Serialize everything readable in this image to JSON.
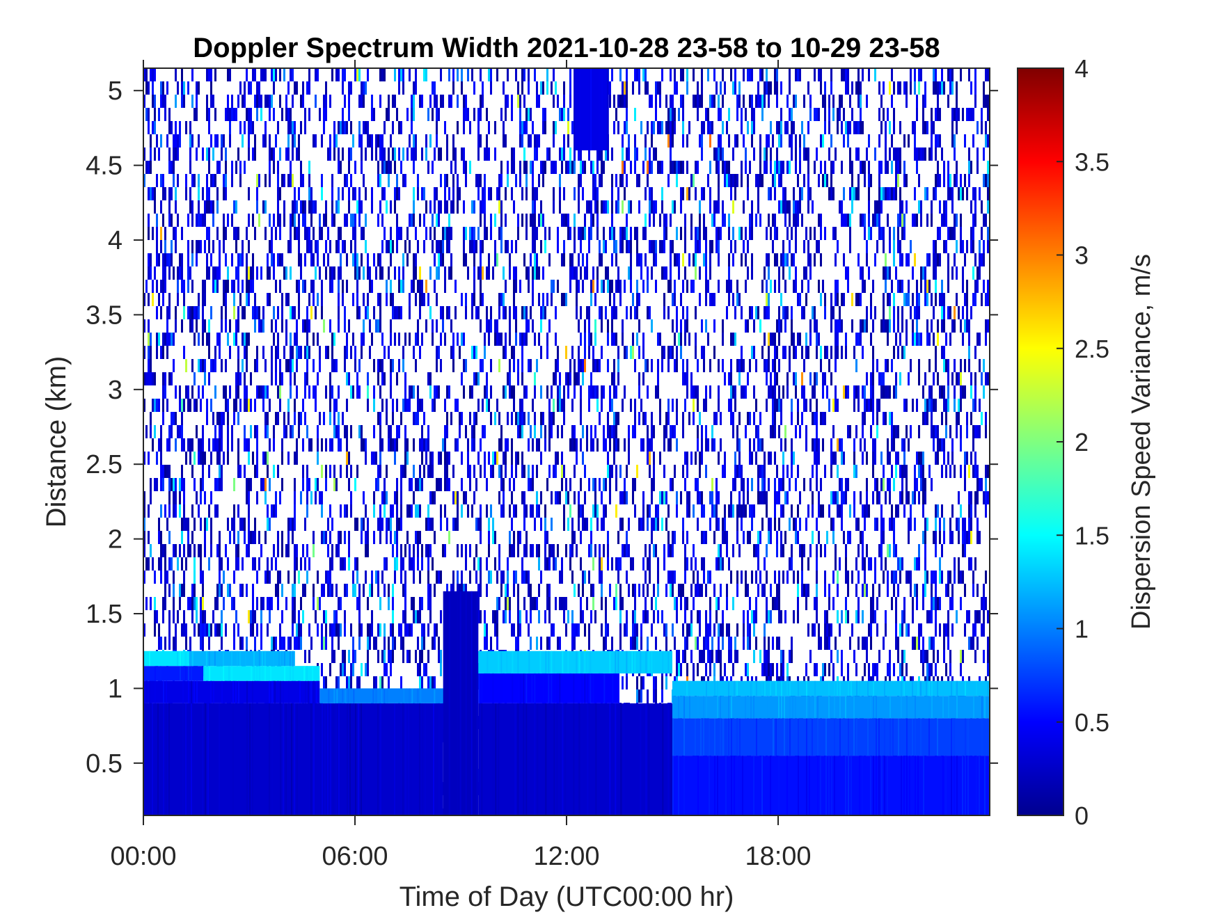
{
  "chart_data": {
    "type": "heatmap",
    "title": "Doppler Spectrum Width 2021-10-28 23-58 to 10-29 23-58",
    "xlabel": "Time of Day (UTC00:00 hr)",
    "ylabel": "Distance (km)",
    "colorbar_label": "Dispersion Speed Variance, m/s",
    "colormap": "jet",
    "xlim_hours": [
      0,
      24
    ],
    "ylim_km": [
      0.15,
      5.15
    ],
    "clim": [
      0,
      4
    ],
    "x_ticks": [
      {
        "value": 0,
        "label": "00:00"
      },
      {
        "value": 6,
        "label": "06:00"
      },
      {
        "value": 12,
        "label": "12:00"
      },
      {
        "value": 18,
        "label": "18:00"
      }
    ],
    "y_ticks": [
      {
        "value": 0.5,
        "label": "0.5"
      },
      {
        "value": 1,
        "label": "1"
      },
      {
        "value": 1.5,
        "label": "1.5"
      },
      {
        "value": 2,
        "label": "2"
      },
      {
        "value": 2.5,
        "label": "2.5"
      },
      {
        "value": 3,
        "label": "3"
      },
      {
        "value": 3.5,
        "label": "3.5"
      },
      {
        "value": 4,
        "label": "4"
      },
      {
        "value": 4.5,
        "label": "4.5"
      },
      {
        "value": 5,
        "label": "5"
      }
    ],
    "colorbar_ticks": [
      {
        "value": 0,
        "label": "0"
      },
      {
        "value": 0.5,
        "label": "0.5"
      },
      {
        "value": 1,
        "label": "1"
      },
      {
        "value": 1.5,
        "label": "1.5"
      },
      {
        "value": 2,
        "label": "2"
      },
      {
        "value": 2.5,
        "label": "2.5"
      },
      {
        "value": 3,
        "label": "3"
      },
      {
        "value": 3.5,
        "label": "3.5"
      },
      {
        "value": 4,
        "label": "4"
      }
    ],
    "regions": [
      {
        "t0": 0,
        "t1": 8.5,
        "z0": 0.15,
        "z1": 0.9,
        "value": 0.3
      },
      {
        "t0": 0,
        "t1": 5.0,
        "z0": 0.9,
        "z1": 1.05,
        "value": 0.4
      },
      {
        "t0": 5.0,
        "t1": 8.5,
        "z0": 0.9,
        "z1": 1.0,
        "value": 1.0
      },
      {
        "t0": 0,
        "t1": 1.7,
        "z0": 1.05,
        "z1": 1.15,
        "value": 0.6
      },
      {
        "t0": 1.7,
        "t1": 5.0,
        "z0": 1.05,
        "z1": 1.15,
        "value": 1.4
      },
      {
        "t0": 0,
        "t1": 1.3,
        "z0": 1.15,
        "z1": 1.25,
        "value": 1.4
      },
      {
        "t0": 1.3,
        "t1": 4.3,
        "z0": 1.15,
        "z1": 1.25,
        "value": 1.2
      },
      {
        "t0": 8.5,
        "t1": 9.5,
        "z0": 0.15,
        "z1": 1.65,
        "value": 0.25
      },
      {
        "t0": 9.5,
        "t1": 15.0,
        "z0": 0.15,
        "z1": 0.9,
        "value": 0.3
      },
      {
        "t0": 9.5,
        "t1": 13.5,
        "z0": 0.9,
        "z1": 1.1,
        "value": 0.5
      },
      {
        "t0": 9.5,
        "t1": 15.0,
        "z0": 1.1,
        "z1": 1.25,
        "value": 1.3
      },
      {
        "t0": 15.0,
        "t1": 24,
        "z0": 0.15,
        "z1": 0.55,
        "value": 0.55
      },
      {
        "t0": 15.0,
        "t1": 24,
        "z0": 0.55,
        "z1": 0.8,
        "value": 0.75
      },
      {
        "t0": 15.0,
        "t1": 24,
        "z0": 0.8,
        "z1": 0.95,
        "value": 1.1
      },
      {
        "t0": 15.0,
        "t1": 24,
        "z0": 0.95,
        "z1": 1.05,
        "value": 1.25
      },
      {
        "t0": 12.2,
        "t1": 13.2,
        "z0": 4.6,
        "z1": 5.15,
        "value": 0.4
      }
    ],
    "background_note_free": true
  }
}
